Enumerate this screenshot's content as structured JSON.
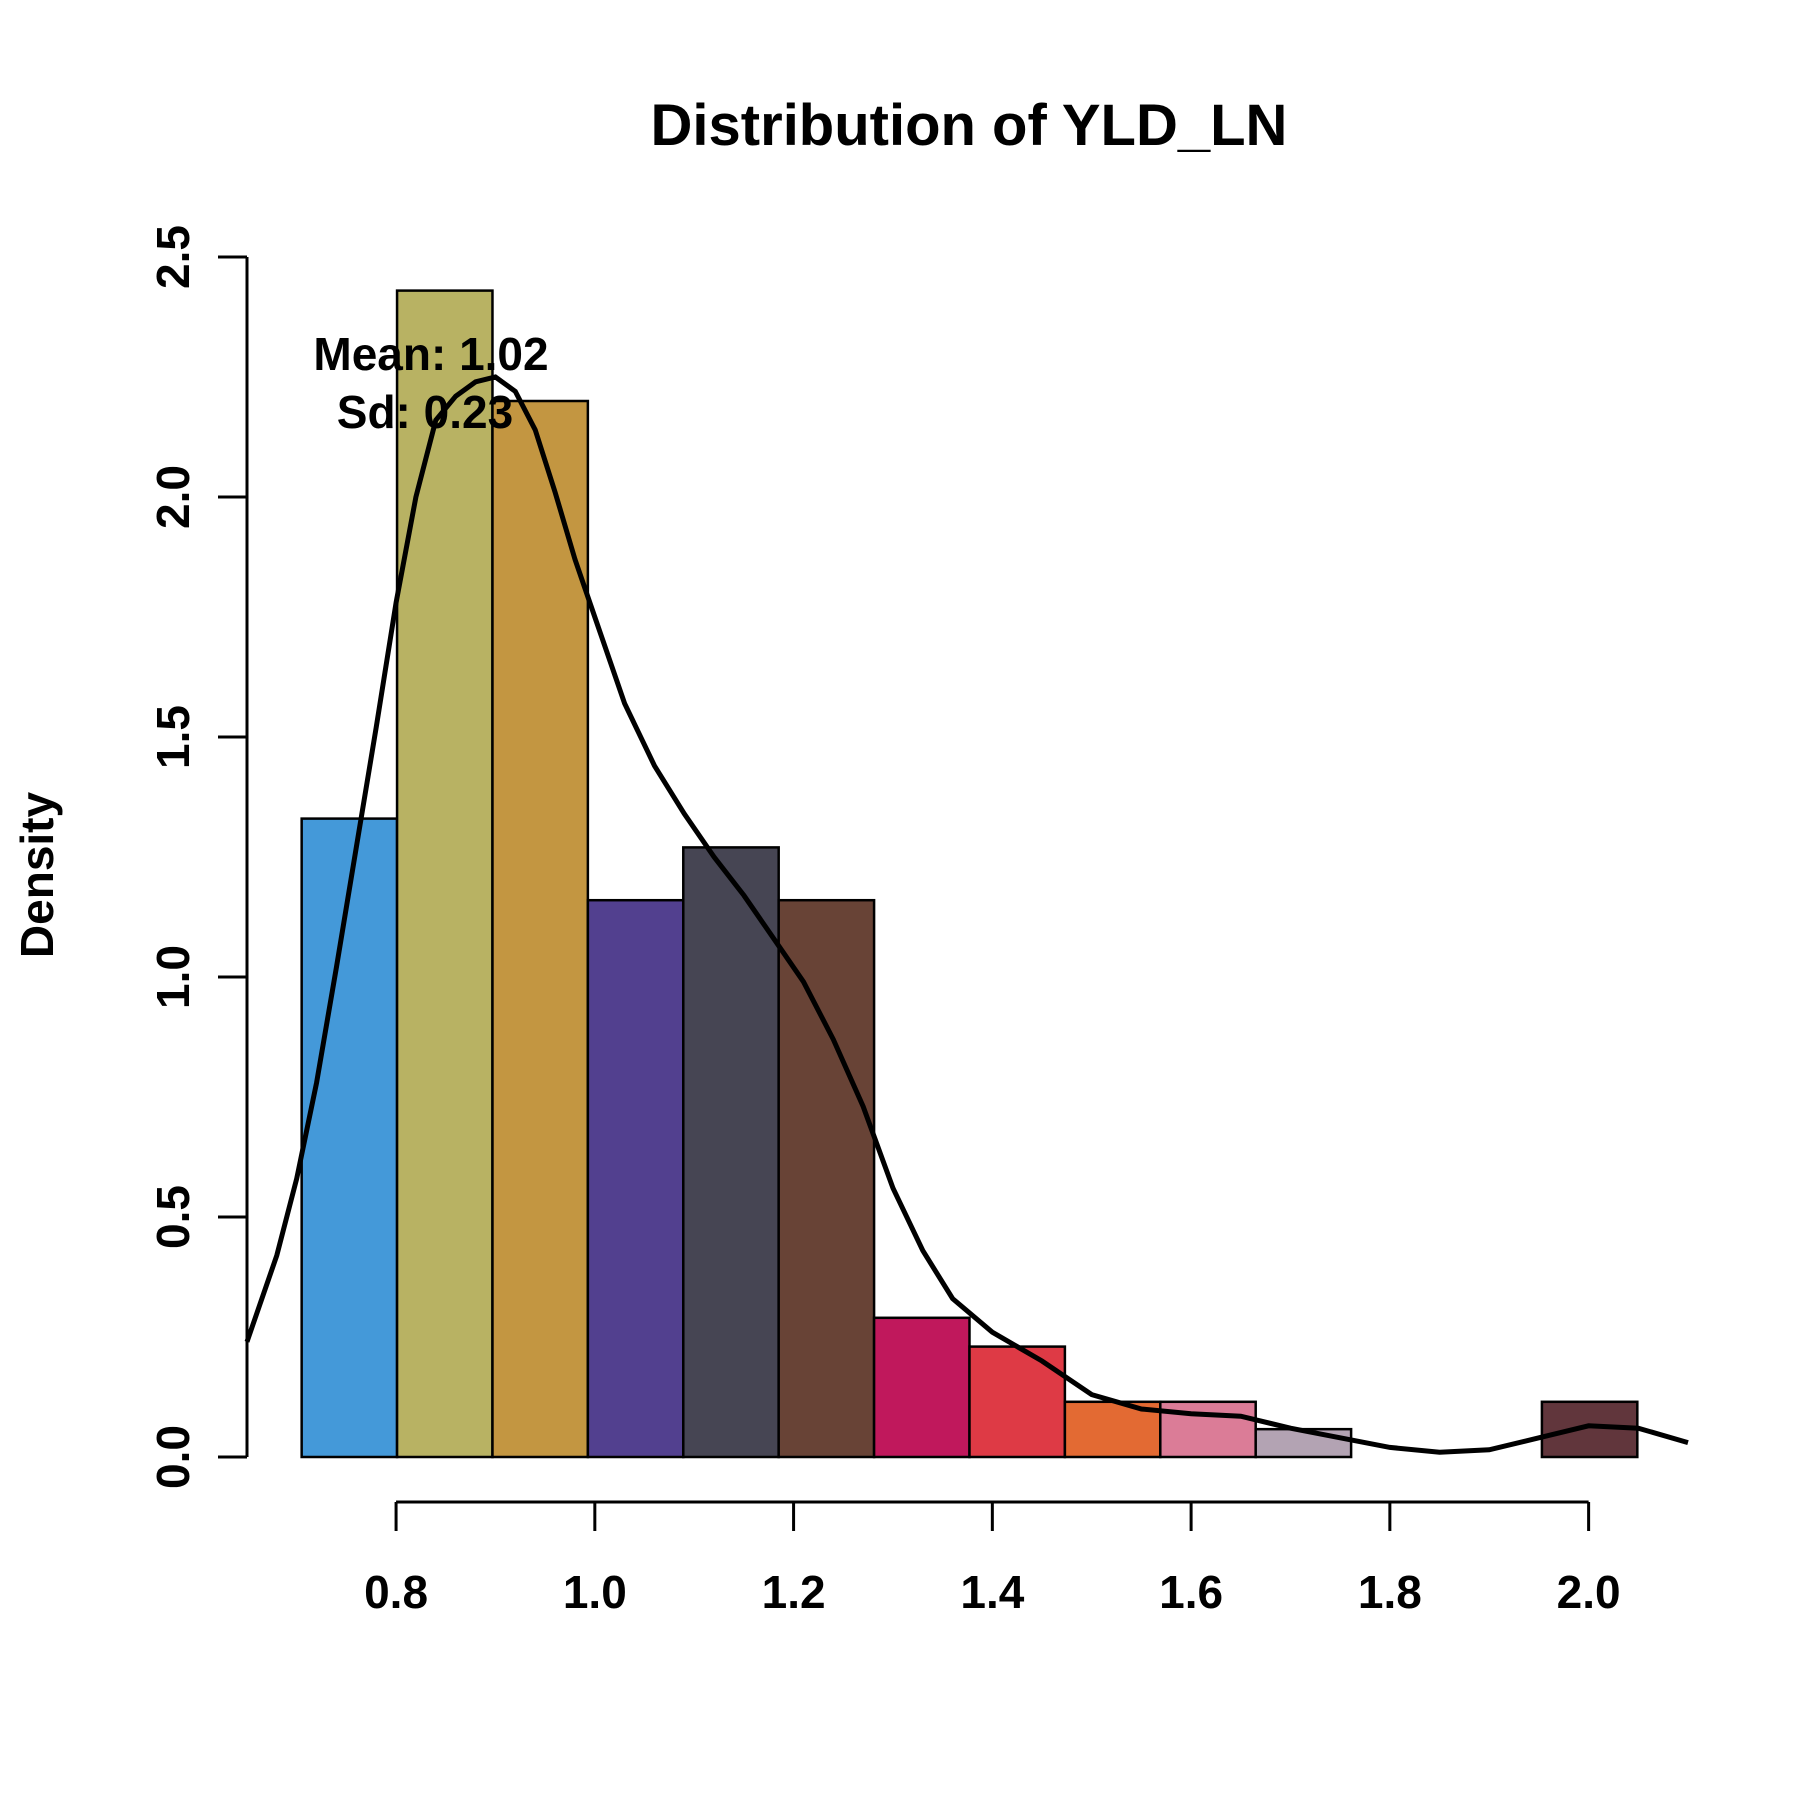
{
  "chart_data": {
    "type": "bar",
    "title": "Distribution of YLD_LN",
    "xlabel": "",
    "ylabel": "Density",
    "xlim": [
      0.65,
      2.1
    ],
    "ylim": [
      0,
      2.5
    ],
    "x_ticks": [
      0.8,
      1.0,
      1.2,
      1.4,
      1.6,
      1.8,
      2.0
    ],
    "x_tick_labels": [
      "0.8",
      "1.0",
      "1.2",
      "1.4",
      "1.6",
      "1.8",
      "2.0"
    ],
    "y_ticks": [
      0,
      0.5,
      1.0,
      1.5,
      2.0,
      2.5
    ],
    "y_tick_labels": [
      "0.0",
      "0.5",
      "1.0",
      "1.5",
      "2.0",
      "2.5"
    ],
    "bins": [
      {
        "start": 0.705,
        "end": 0.801,
        "density": 1.33,
        "color": "#4499d9"
      },
      {
        "start": 0.801,
        "end": 0.897,
        "density": 2.43,
        "color": "#b8b263"
      },
      {
        "start": 0.897,
        "end": 0.993,
        "density": 2.2,
        "color": "#c39641"
      },
      {
        "start": 0.993,
        "end": 1.089,
        "density": 1.16,
        "color": "#52408f"
      },
      {
        "start": 1.089,
        "end": 1.185,
        "density": 1.27,
        "color": "#464553"
      },
      {
        "start": 1.185,
        "end": 1.281,
        "density": 1.16,
        "color": "#684336"
      },
      {
        "start": 1.281,
        "end": 1.377,
        "density": 0.29,
        "color": "#c0185c"
      },
      {
        "start": 1.377,
        "end": 1.473,
        "density": 0.23,
        "color": "#de3a45"
      },
      {
        "start": 1.473,
        "end": 1.569,
        "density": 0.115,
        "color": "#e36a33"
      },
      {
        "start": 1.569,
        "end": 1.665,
        "density": 0.115,
        "color": "#db7c97"
      },
      {
        "start": 1.665,
        "end": 1.761,
        "density": 0.058,
        "color": "#b3a3b3"
      },
      {
        "start": 1.761,
        "end": 1.857,
        "density": 0.0,
        "color": "#ffffff"
      },
      {
        "start": 1.857,
        "end": 1.953,
        "density": 0.0,
        "color": "#ffffff"
      },
      {
        "start": 1.953,
        "end": 2.049,
        "density": 0.115,
        "color": "#61363c"
      }
    ],
    "density_curve": {
      "x": [
        0.65,
        0.68,
        0.7,
        0.72,
        0.74,
        0.76,
        0.78,
        0.8,
        0.82,
        0.84,
        0.86,
        0.88,
        0.9,
        0.92,
        0.94,
        0.96,
        0.98,
        1.0,
        1.03,
        1.06,
        1.09,
        1.12,
        1.15,
        1.18,
        1.21,
        1.24,
        1.27,
        1.3,
        1.33,
        1.36,
        1.4,
        1.45,
        1.5,
        1.55,
        1.6,
        1.65,
        1.7,
        1.75,
        1.8,
        1.85,
        1.9,
        1.95,
        2.0,
        2.05,
        2.1
      ],
      "y": [
        0.24,
        0.42,
        0.58,
        0.78,
        1.02,
        1.27,
        1.52,
        1.78,
        2.0,
        2.16,
        2.21,
        2.24,
        2.25,
        2.22,
        2.14,
        2.01,
        1.87,
        1.75,
        1.57,
        1.44,
        1.34,
        1.25,
        1.17,
        1.08,
        0.99,
        0.87,
        0.73,
        0.56,
        0.43,
        0.33,
        0.26,
        0.2,
        0.13,
        0.1,
        0.09,
        0.085,
        0.06,
        0.04,
        0.02,
        0.01,
        0.015,
        0.04,
        0.065,
        0.06,
        0.03
      ]
    },
    "annotations": [
      "Mean: 1.02",
      "Sd: 0.23"
    ],
    "grid": false,
    "legend": "none"
  }
}
